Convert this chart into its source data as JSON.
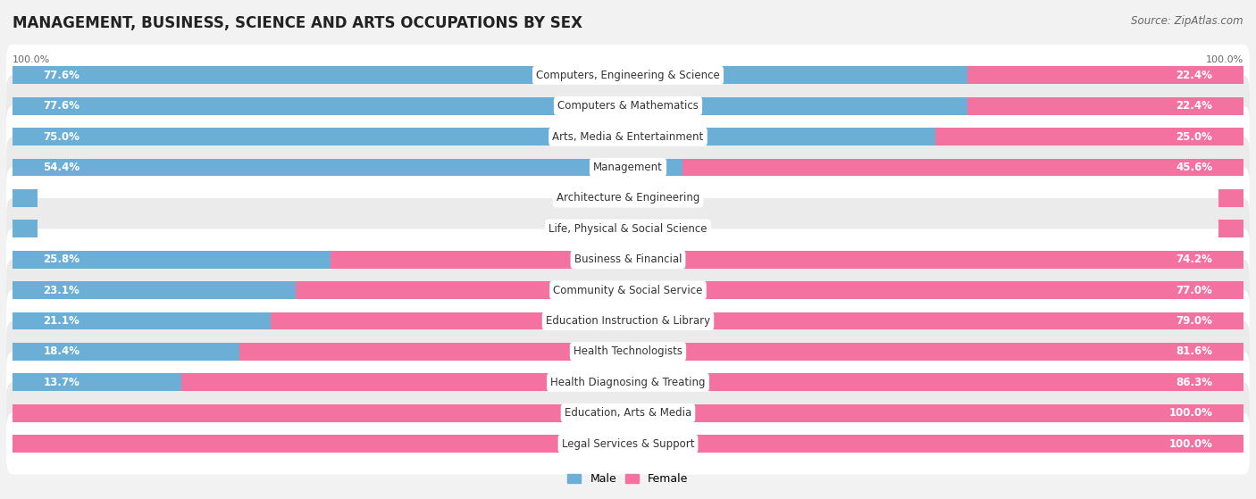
{
  "title": "MANAGEMENT, BUSINESS, SCIENCE AND ARTS OCCUPATIONS BY SEX",
  "source": "Source: ZipAtlas.com",
  "categories": [
    "Computers, Engineering & Science",
    "Computers & Mathematics",
    "Arts, Media & Entertainment",
    "Management",
    "Architecture & Engineering",
    "Life, Physical & Social Science",
    "Business & Financial",
    "Community & Social Service",
    "Education Instruction & Library",
    "Health Technologists",
    "Health Diagnosing & Treating",
    "Education, Arts & Media",
    "Legal Services & Support"
  ],
  "male_pct": [
    77.6,
    77.6,
    75.0,
    54.4,
    0.0,
    0.0,
    25.8,
    23.1,
    21.1,
    18.4,
    13.7,
    0.0,
    0.0
  ],
  "female_pct": [
    22.4,
    22.4,
    25.0,
    45.6,
    0.0,
    0.0,
    74.2,
    77.0,
    79.0,
    81.6,
    86.3,
    100.0,
    100.0
  ],
  "male_color": "#6BAED6",
  "female_color": "#F472A0",
  "male_label": "Male",
  "female_label": "Female",
  "background_color": "#f2f2f2",
  "row_bg_even": "#ffffff",
  "row_bg_odd": "#ebebeb",
  "bar_height": 0.58,
  "title_fontsize": 12,
  "source_fontsize": 8.5,
  "label_fontsize": 8.5,
  "legend_fontsize": 9,
  "pct_fontsize": 8.5
}
